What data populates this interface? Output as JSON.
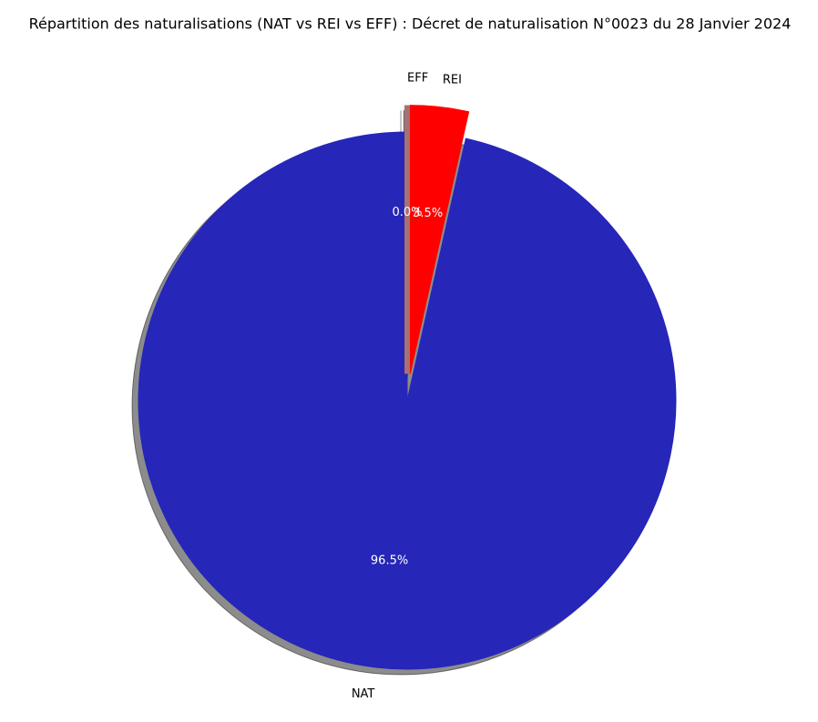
{
  "chart_data": {
    "type": "pie",
    "title": "Répartition des naturalisations (NAT vs REI vs EFF) : Décret de naturalisation N°0023 du 28 Janvier 2024",
    "categories": [
      "NAT",
      "REI",
      "EFF"
    ],
    "values": [
      96.5,
      3.5,
      0.0
    ],
    "value_labels": [
      "96.5%",
      "3.5%",
      "0.0%"
    ],
    "colors": [
      "#2626b8",
      "#ff0000",
      "#a87070"
    ]
  }
}
